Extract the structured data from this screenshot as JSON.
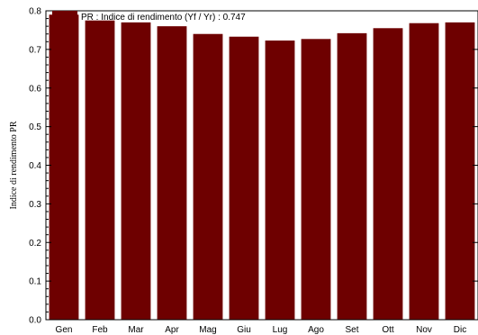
{
  "chart_data": {
    "type": "bar",
    "categories": [
      "Gen",
      "Feb",
      "Mar",
      "Apr",
      "Mag",
      "Giu",
      "Lug",
      "Ago",
      "Set",
      "Ott",
      "Nov",
      "Dic"
    ],
    "series": [
      {
        "name": "PR : Indice di rendimento (Yf / Yr) :  0.747",
        "values": [
          0.79,
          0.775,
          0.77,
          0.76,
          0.74,
          0.733,
          0.723,
          0.727,
          0.742,
          0.755,
          0.768,
          0.77
        ]
      }
    ],
    "ylabel": "Indice di rendimento PR",
    "ylim": [
      0,
      0.8
    ],
    "yticks": [
      "0.0",
      "0.1",
      "0.2",
      "0.3",
      "0.4",
      "0.5",
      "0.6",
      "0.7",
      "0.8"
    ],
    "bar_color": "#6e0000",
    "legend_position": "top-left",
    "grid": false
  }
}
